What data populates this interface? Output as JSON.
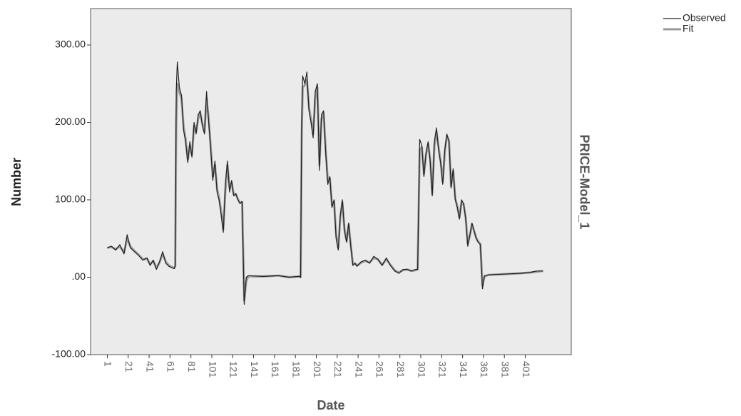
{
  "chart_data": {
    "type": "line",
    "x_label": "Date",
    "y_label": "Number",
    "side_label": "PRICE-Model_1",
    "x": [
      1,
      5,
      9,
      13,
      17,
      20,
      23,
      27,
      31,
      35,
      39,
      42,
      45,
      48,
      51,
      54,
      57,
      60,
      63,
      65,
      66,
      67,
      68,
      70,
      72,
      74,
      76,
      78,
      80,
      82,
      84,
      86,
      88,
      90,
      92,
      94,
      96,
      98,
      100,
      102,
      104,
      106,
      108,
      110,
      112,
      114,
      116,
      118,
      120,
      122,
      124,
      126,
      128,
      130,
      132,
      134,
      136,
      150,
      165,
      175,
      185,
      186,
      187,
      188,
      190,
      192,
      194,
      196,
      198,
      200,
      202,
      204,
      206,
      208,
      210,
      212,
      214,
      216,
      218,
      220,
      222,
      224,
      226,
      228,
      230,
      232,
      234,
      236,
      238,
      240,
      244,
      248,
      252,
      256,
      260,
      264,
      268,
      272,
      276,
      280,
      284,
      288,
      292,
      296,
      298,
      300,
      302,
      304,
      306,
      308,
      310,
      312,
      314,
      316,
      318,
      320,
      322,
      324,
      326,
      328,
      330,
      332,
      334,
      336,
      338,
      340,
      342,
      344,
      346,
      348,
      350,
      352,
      354,
      356,
      358,
      360,
      362,
      366,
      380,
      395,
      405,
      412,
      418
    ],
    "series": [
      {
        "name": "Observed",
        "color": "#222222",
        "width": 1.2,
        "values": [
          38,
          40,
          35,
          42,
          30,
          55,
          38,
          33,
          28,
          22,
          25,
          15,
          22,
          10,
          20,
          33,
          18,
          14,
          12,
          11,
          15,
          240,
          278,
          245,
          235,
          190,
          175,
          148,
          175,
          155,
          200,
          185,
          210,
          215,
          195,
          185,
          240,
          200,
          165,
          125,
          150,
          110,
          100,
          80,
          58,
          120,
          150,
          110,
          125,
          105,
          108,
          100,
          95,
          98,
          -35,
          0,
          2,
          1,
          2,
          0,
          1,
          0,
          200,
          260,
          250,
          265,
          215,
          200,
          180,
          240,
          250,
          138,
          210,
          215,
          160,
          120,
          130,
          90,
          100,
          50,
          35,
          80,
          100,
          60,
          45,
          70,
          40,
          15,
          18,
          14,
          20,
          22,
          18,
          27,
          23,
          15,
          25,
          15,
          8,
          5,
          10,
          10,
          8,
          10,
          10,
          178,
          170,
          130,
          160,
          175,
          150,
          105,
          175,
          193,
          165,
          148,
          120,
          165,
          185,
          175,
          115,
          140,
          100,
          90,
          75,
          100,
          95,
          75,
          40,
          55,
          70,
          60,
          50,
          45,
          42,
          -15,
          2,
          3,
          4,
          5,
          6,
          8,
          8
        ]
      },
      {
        "name": "Fit",
        "color": "#9a9a9a",
        "width": 3,
        "values": [
          38,
          39,
          36,
          40,
          32,
          50,
          40,
          34,
          29,
          23,
          24,
          17,
          21,
          12,
          19,
          30,
          20,
          15,
          13,
          12,
          14,
          200,
          250,
          240,
          230,
          195,
          178,
          152,
          170,
          158,
          195,
          188,
          205,
          212,
          198,
          188,
          230,
          205,
          168,
          130,
          145,
          115,
          102,
          85,
          62,
          112,
          145,
          115,
          122,
          107,
          107,
          101,
          96,
          97,
          -30,
          -5,
          1,
          1,
          2,
          0,
          1,
          0,
          180,
          245,
          248,
          255,
          220,
          203,
          185,
          232,
          245,
          145,
          205,
          212,
          165,
          125,
          128,
          93,
          98,
          55,
          38,
          78,
          97,
          62,
          47,
          68,
          42,
          17,
          18,
          15,
          19,
          21,
          19,
          25,
          23,
          16,
          23,
          16,
          9,
          6,
          9,
          10,
          8,
          9,
          10,
          165,
          168,
          133,
          158,
          172,
          152,
          108,
          170,
          188,
          168,
          150,
          123,
          162,
          182,
          176,
          118,
          137,
          102,
          91,
          77,
          97,
          94,
          77,
          43,
          54,
          68,
          60,
          51,
          46,
          43,
          -10,
          1,
          3,
          4,
          5,
          6,
          7,
          8
        ]
      }
    ],
    "xlim": [
      -15,
      445
    ],
    "xticks": [
      1,
      21,
      41,
      61,
      81,
      101,
      121,
      141,
      161,
      181,
      201,
      221,
      241,
      261,
      281,
      301,
      321,
      341,
      361,
      381,
      401
    ],
    "ylim": [
      -100,
      347
    ],
    "yticks": [
      {
        "value": -100,
        "label": "-100.00"
      },
      {
        "value": 0,
        "label": ".00"
      },
      {
        "value": 100,
        "label": "100.00"
      },
      {
        "value": 200,
        "label": "200.00"
      },
      {
        "value": 300,
        "label": "300.00"
      }
    ],
    "plot_background": "#ebebeb"
  }
}
